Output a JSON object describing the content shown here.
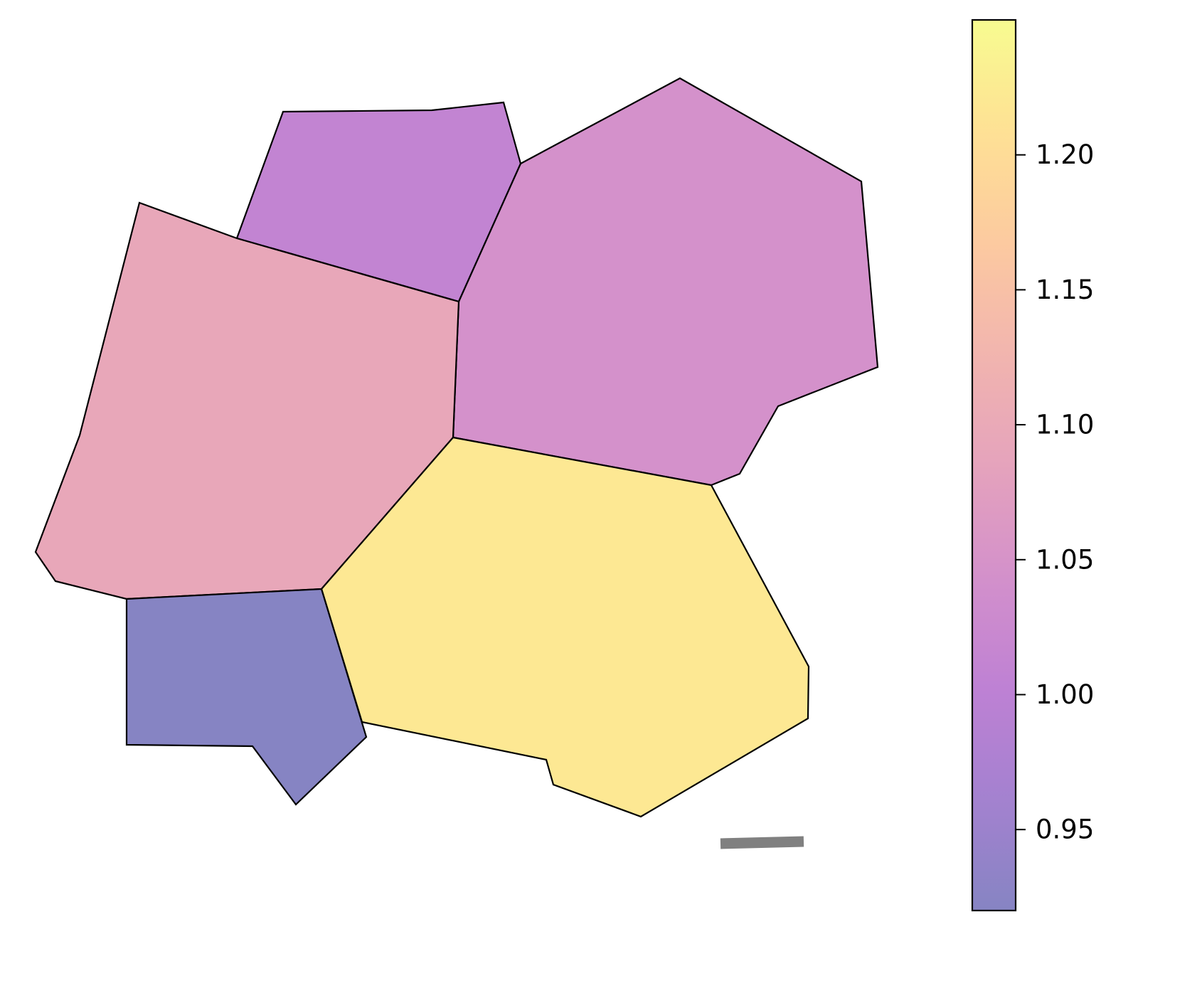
{
  "chart_data": {
    "type": "choropleth",
    "title": "",
    "colormap": "plasma",
    "alpha": 0.5,
    "regions": [
      {
        "name": "",
        "value": 1.01
      },
      {
        "name": "",
        "value": 1.045
      },
      {
        "name": "",
        "value": 1.095
      },
      {
        "name": "",
        "value": 1.22
      },
      {
        "name": "",
        "value": 0.92
      }
    ],
    "colorbar": {
      "vmin": 0.92,
      "vmax": 1.25,
      "ticks": [
        0.95,
        1.0,
        1.05,
        1.1,
        1.15,
        1.2
      ],
      "tick_labels": [
        "0.95",
        "1.00",
        "1.05",
        "1.10",
        "1.15",
        "1.20"
      ]
    },
    "scale_bar": {
      "color": "#808080"
    }
  }
}
